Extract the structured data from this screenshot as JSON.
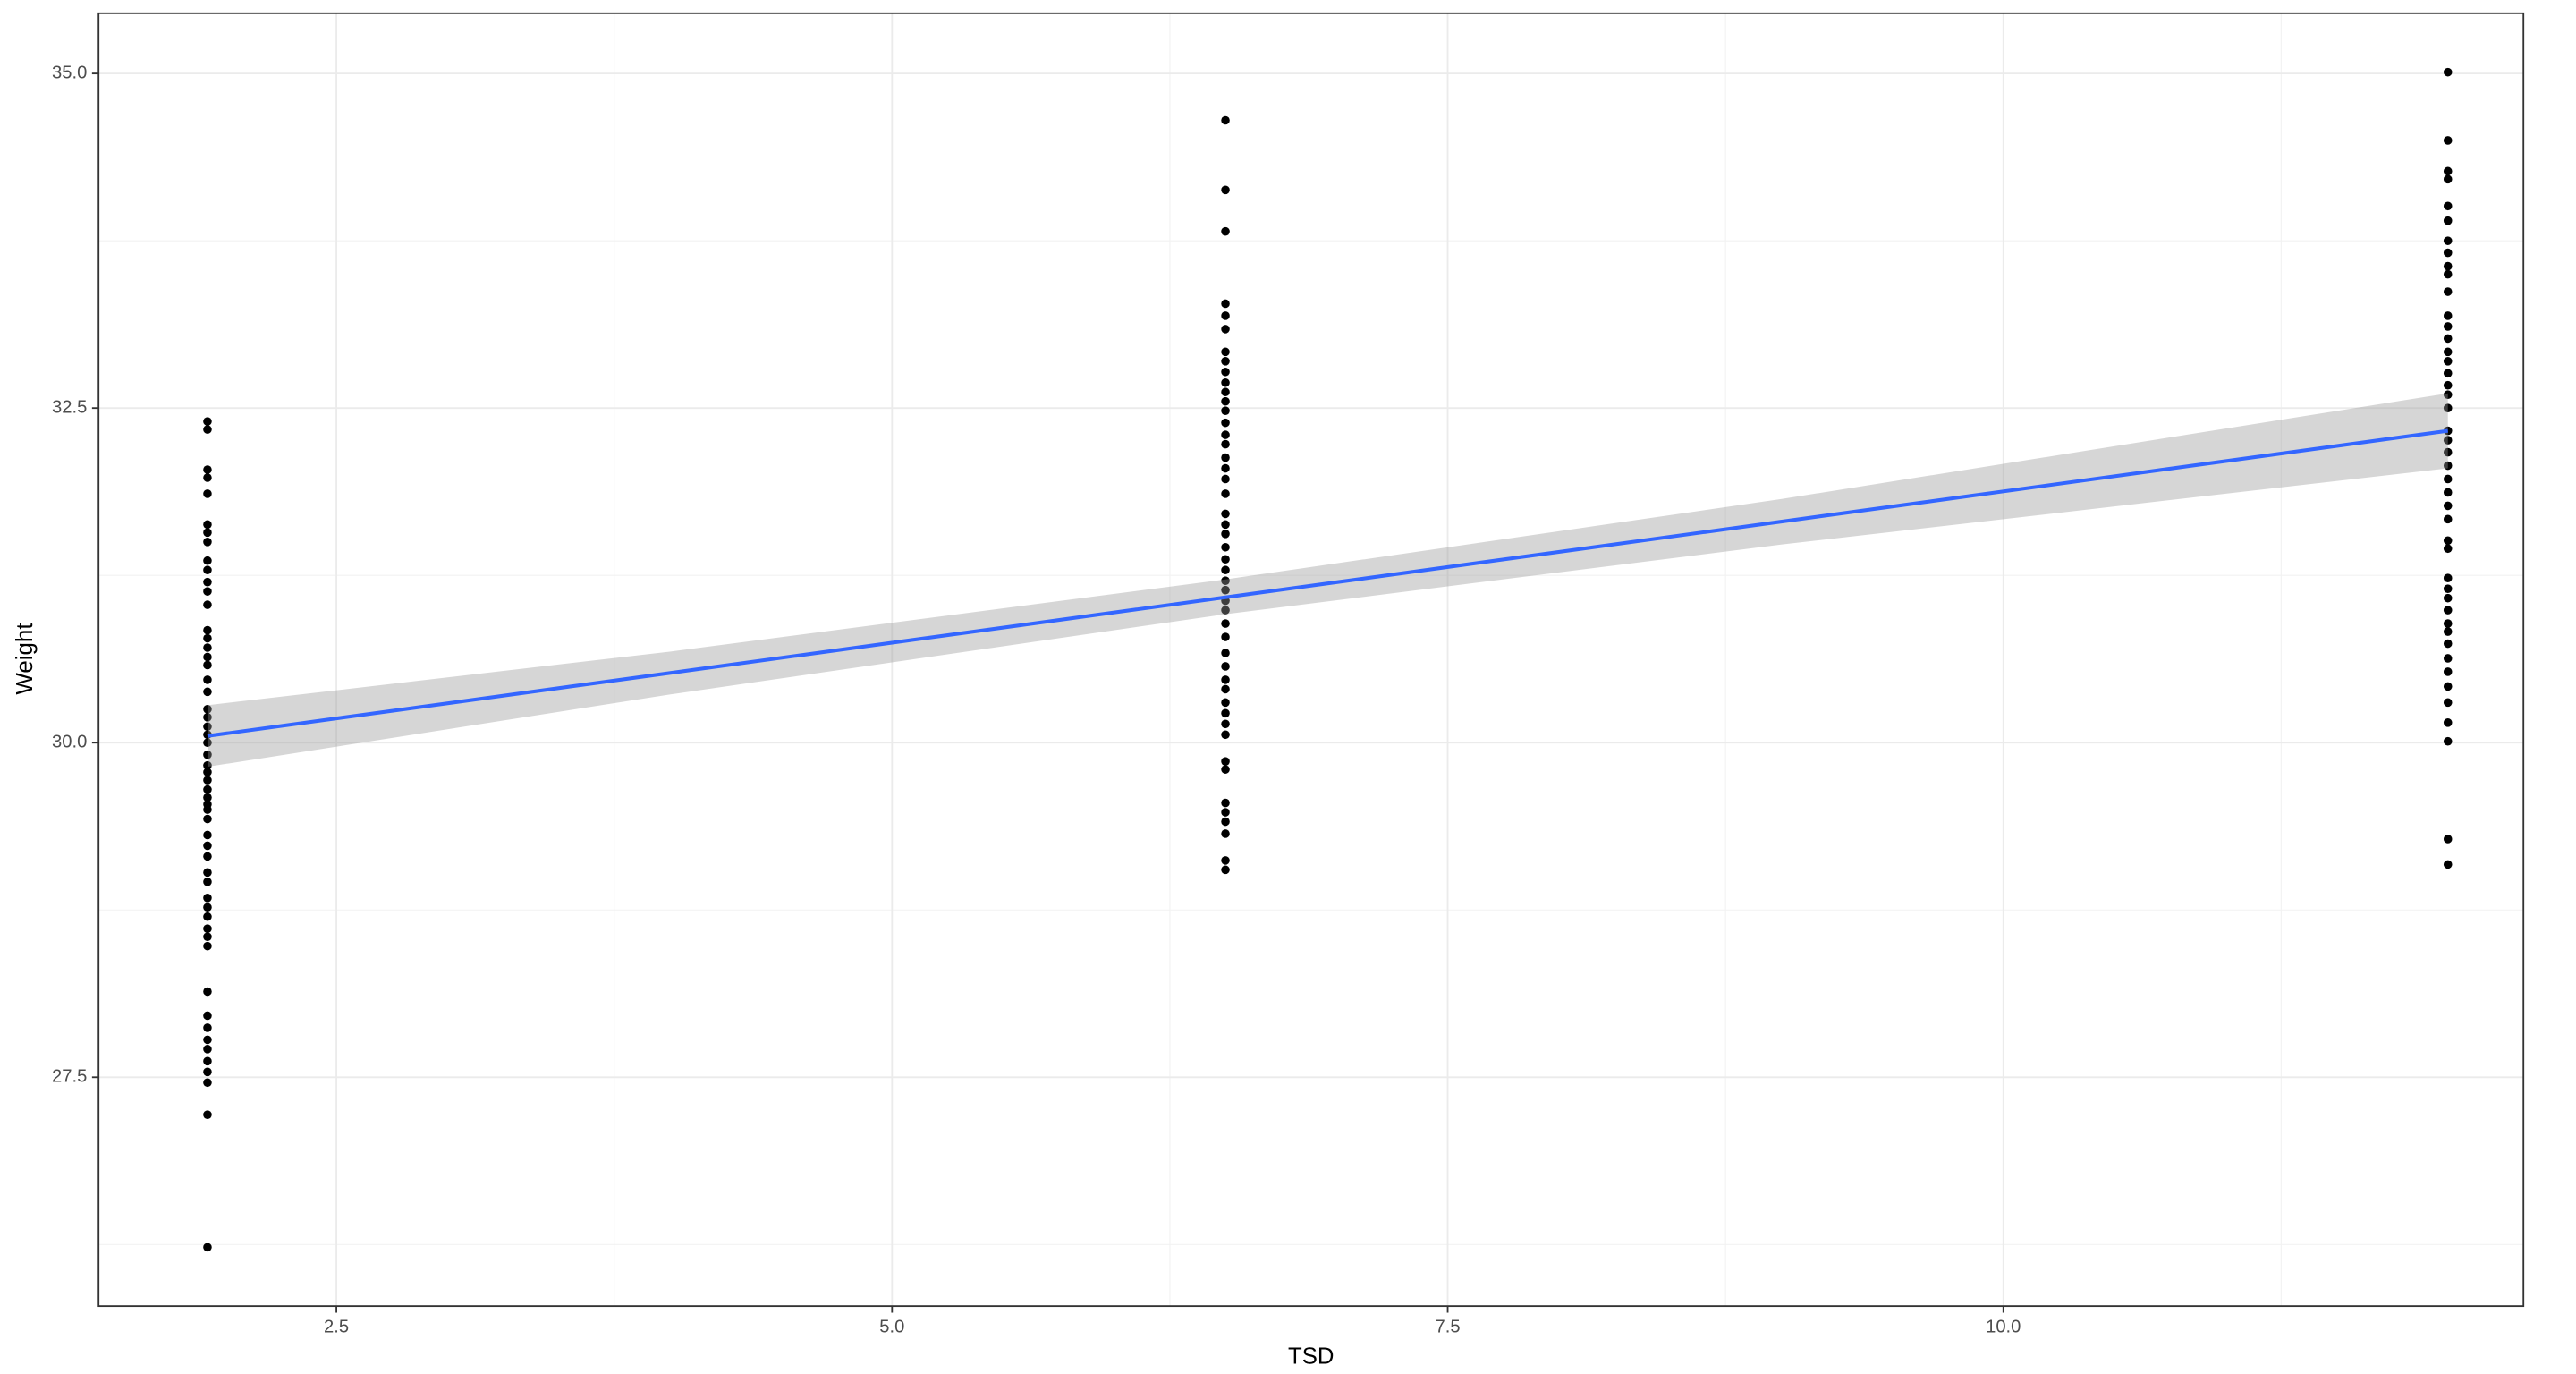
{
  "chart_data": {
    "type": "scatter",
    "x_label": "TSD",
    "y_label": "Weight",
    "xlim": [
      1.43,
      12.34
    ],
    "ylim": [
      25.79,
      35.45
    ],
    "xticks": [
      {
        "value": 2.5,
        "label": "2.5"
      },
      {
        "value": 5,
        "label": "5.0"
      },
      {
        "value": 7.5,
        "label": "7.5"
      },
      {
        "value": 10,
        "label": "10.0"
      }
    ],
    "yticks": [
      {
        "value": 27.5,
        "label": "27.5"
      },
      {
        "value": 30,
        "label": "30.0"
      },
      {
        "value": 32.5,
        "label": "32.5"
      },
      {
        "value": 35,
        "label": "35.0"
      }
    ],
    "x_minor_ticks": [
      3.75,
      6.25,
      8.75,
      11.25
    ],
    "y_minor_ticks": [
      26.25,
      28.75,
      31.25,
      33.75
    ],
    "grid": true,
    "point_color": "#000000",
    "groups": [
      {
        "x": 1.92,
        "values": [
          32.4,
          32.34,
          32.04,
          31.98,
          31.86,
          31.63,
          31.57,
          31.5,
          31.36,
          31.29,
          31.2,
          31.13,
          31.03,
          30.84,
          30.78,
          30.71,
          30.64,
          30.58,
          30.47,
          30.38,
          30.25,
          30.19,
          30.12,
          30.06,
          30.0,
          29.91,
          29.83,
          29.78,
          29.72,
          29.65,
          29.59,
          29.54,
          29.5,
          29.43,
          29.31,
          29.23,
          29.15,
          29.03,
          28.96,
          28.84,
          28.77,
          28.7,
          28.61,
          28.55,
          28.48,
          28.14,
          27.96,
          27.87,
          27.78,
          27.71,
          27.62,
          27.54,
          27.46,
          27.22,
          26.23
        ]
      },
      {
        "x": 6.5,
        "values": [
          34.65,
          34.13,
          33.82,
          33.28,
          33.19,
          33.09,
          32.92,
          32.85,
          32.77,
          32.69,
          32.62,
          32.55,
          32.48,
          32.39,
          32.3,
          32.23,
          32.13,
          32.05,
          31.97,
          31.86,
          31.71,
          31.63,
          31.56,
          31.46,
          31.37,
          31.29,
          31.21,
          31.14,
          31.06,
          30.99,
          30.89,
          30.79,
          30.67,
          30.57,
          30.47,
          30.4,
          30.3,
          30.22,
          30.14,
          30.06,
          29.86,
          29.8,
          29.55,
          29.48,
          29.41,
          29.32,
          29.12,
          29.05
        ]
      },
      {
        "x": 12.0,
        "values": [
          35.01,
          34.5,
          34.27,
          34.21,
          34.01,
          33.9,
          33.75,
          33.66,
          33.56,
          33.5,
          33.37,
          33.19,
          33.11,
          33.02,
          32.92,
          32.85,
          32.76,
          32.67,
          32.6,
          32.5,
          32.33,
          32.26,
          32.17,
          32.07,
          31.97,
          31.87,
          31.77,
          31.67,
          31.51,
          31.45,
          31.23,
          31.15,
          31.08,
          30.99,
          30.89,
          30.83,
          30.74,
          30.63,
          30.53,
          30.42,
          30.3,
          30.15,
          30.01,
          29.28,
          29.09
        ]
      }
    ],
    "fit": {
      "color": "#3366FF",
      "x": [
        1.92,
        12.0
      ],
      "y": [
        30.05,
        32.33
      ]
    },
    "band": {
      "color": "#999999",
      "x": [
        1.92,
        4,
        6.5,
        9,
        12.0
      ],
      "lower": [
        29.82,
        30.36,
        30.96,
        31.48,
        32.05
      ],
      "upper": [
        30.28,
        30.68,
        31.22,
        31.82,
        32.61
      ]
    }
  }
}
